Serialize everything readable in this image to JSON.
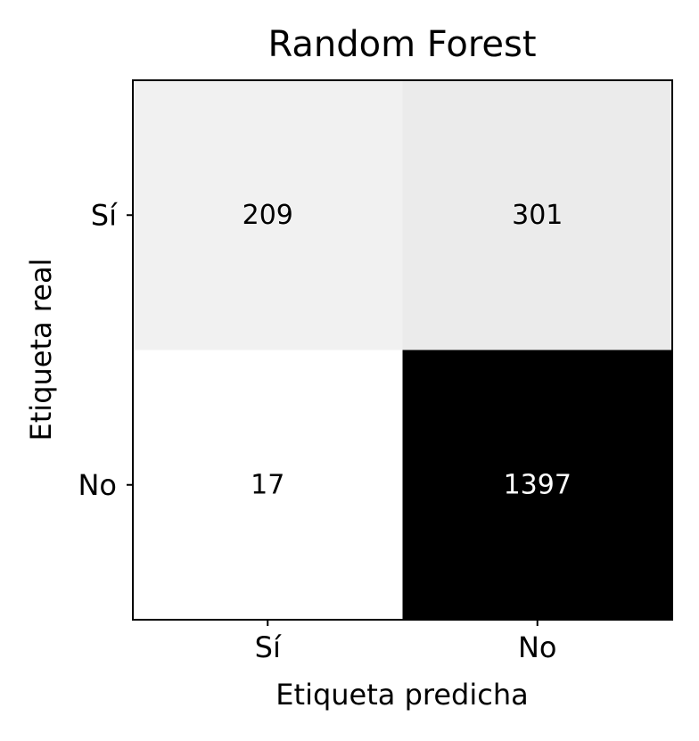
{
  "chart_data": {
    "type": "heatmap",
    "title": "Random Forest",
    "xlabel": "Etiqueta predicha",
    "ylabel": "Etiqueta real",
    "x_categories": [
      "Sí",
      "No"
    ],
    "y_categories": [
      "Sí",
      "No"
    ],
    "values": [
      [
        209,
        301
      ],
      [
        17,
        1397
      ]
    ],
    "colormap": "greys",
    "low_color": "#ffffff",
    "high_color": "#000000",
    "grid": false,
    "legend": "none"
  }
}
